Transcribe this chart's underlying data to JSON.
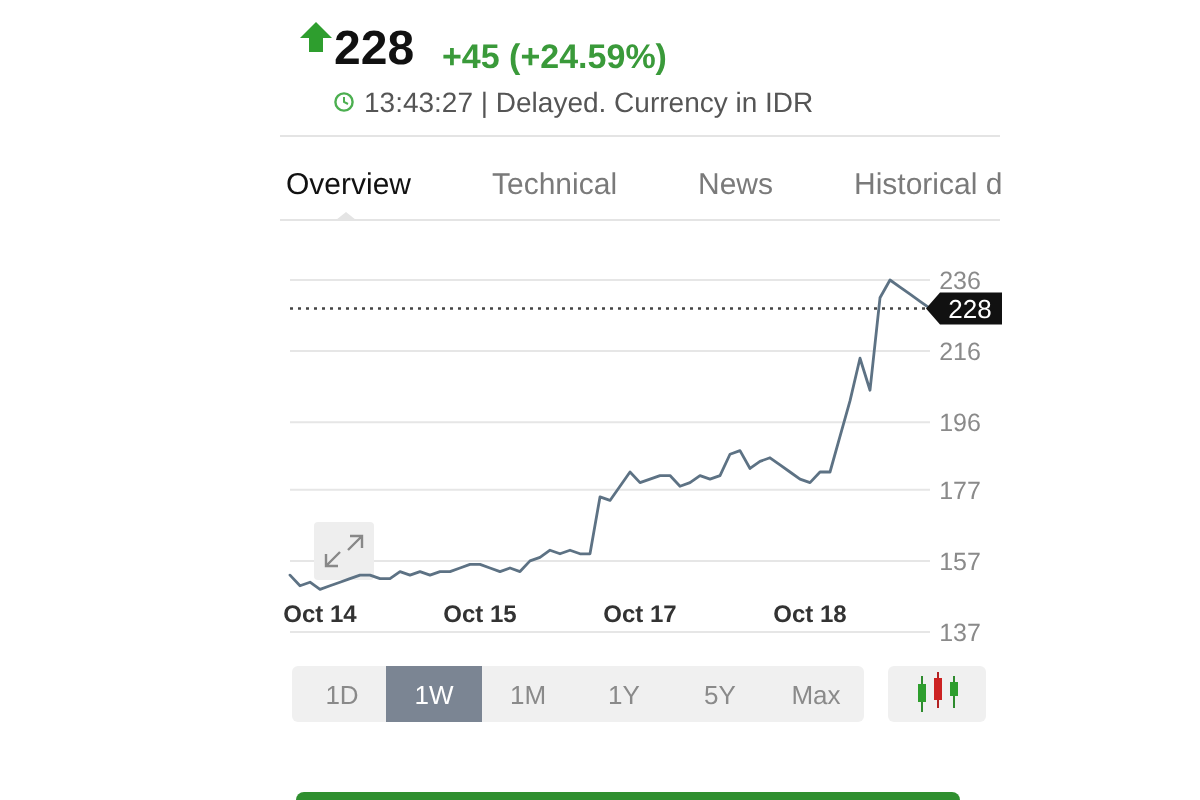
{
  "chart_data": {
    "type": "line",
    "title": "228",
    "subtitle": "+45 (+24.59%)",
    "annotations": [
      "13:43:27 | Delayed. Currency in IDR",
      "Overview",
      "Technical",
      "News",
      "Historical d",
      "1D",
      "1W",
      "1M",
      "1Y",
      "5Y",
      "Max"
    ],
    "categories": [
      null,
      null,
      null,
      "Oct 14",
      null,
      null,
      null,
      null,
      null,
      null,
      null,
      null,
      null,
      null,
      null,
      null,
      null,
      null,
      null,
      "Oct 15",
      null,
      null,
      null,
      null,
      null,
      null,
      null,
      null,
      null,
      null,
      null,
      null,
      null,
      null,
      null,
      "Oct 17",
      null,
      null,
      null,
      null,
      null,
      null,
      null,
      null,
      null,
      null,
      null,
      null,
      null,
      null,
      null,
      null,
      "Oct 18",
      null,
      null,
      null,
      null,
      null,
      null,
      null,
      null,
      null,
      null,
      null,
      null
    ],
    "values": [
      153,
      150,
      151,
      149,
      150,
      151,
      152,
      153,
      153,
      152,
      152,
      154,
      153,
      154,
      153,
      154,
      154,
      155,
      156,
      156,
      155,
      154,
      155,
      154,
      157,
      158,
      160,
      159,
      160,
      159,
      159,
      175,
      174,
      178,
      182,
      179,
      180,
      181,
      181,
      178,
      179,
      181,
      180,
      181,
      187,
      188,
      183,
      185,
      186,
      184,
      182,
      180,
      179,
      182,
      182,
      192,
      202,
      214,
      205,
      231,
      236,
      234,
      232,
      230,
      228
    ],
    "color": "#5d7284",
    "ylim": [
      137,
      236
    ],
    "yticks": [
      137,
      157,
      177,
      196,
      216,
      236
    ],
    "grid": "y",
    "ref_lines": [
      {
        "axis": "y",
        "value": 228,
        "label": "228",
        "color": "#444444",
        "line_style": "dotted"
      }
    ]
  }
}
